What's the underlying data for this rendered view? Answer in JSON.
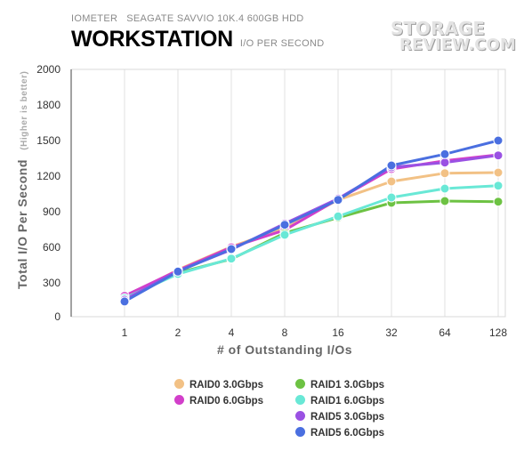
{
  "header": {
    "tool": "IOMETER",
    "device": "SEAGATE SAVVIO 10K.4 600GB HDD",
    "title": "WORKSTATION",
    "subtitle": "I/O PER SECOND",
    "logo_line1": "STORAGE",
    "logo_line2": "REVIEW.COM"
  },
  "chart_data": {
    "type": "line",
    "title": "WORKSTATION",
    "subtitle": "I/O PER SECOND",
    "xlabel": "# of Outstanding I/Os",
    "ylabel": "Total I/O Per Second",
    "ylabel_note": "(Higher is better)",
    "x": [
      "1",
      "2",
      "4",
      "8",
      "16",
      "32",
      "64",
      "128"
    ],
    "y_ticks": [
      0,
      300,
      600,
      900,
      1200,
      1500,
      1800,
      2000
    ],
    "ylim": [
      0,
      2000
    ],
    "grid": "vertical",
    "legend_position": "bottom",
    "series": [
      {
        "name": "RAID0 3.0Gbps",
        "color": "#f2c185",
        "values": [
          170,
          410,
          605,
          760,
          1000,
          1155,
          1225,
          1230
        ]
      },
      {
        "name": "RAID0 6.0Gbps",
        "color": "#d23fca",
        "values": [
          185,
          405,
          600,
          745,
          1005,
          1260,
          1330,
          1380
        ]
      },
      {
        "name": "RAID1 3.0Gbps",
        "color": "#6dc243",
        "values": [
          155,
          385,
          500,
          720,
          850,
          975,
          990,
          985
        ]
      },
      {
        "name": "RAID1 6.0Gbps",
        "color": "#69e8d6",
        "values": [
          165,
          375,
          505,
          705,
          860,
          1020,
          1095,
          1120
        ]
      },
      {
        "name": "RAID5 3.0Gbps",
        "color": "#9a51e3",
        "values": [
          150,
          400,
          580,
          800,
          1010,
          1275,
          1315,
          1375
        ]
      },
      {
        "name": "RAID5 6.0Gbps",
        "color": "#4a6fe0",
        "values": [
          135,
          395,
          585,
          790,
          1000,
          1290,
          1385,
          1500
        ]
      }
    ]
  }
}
